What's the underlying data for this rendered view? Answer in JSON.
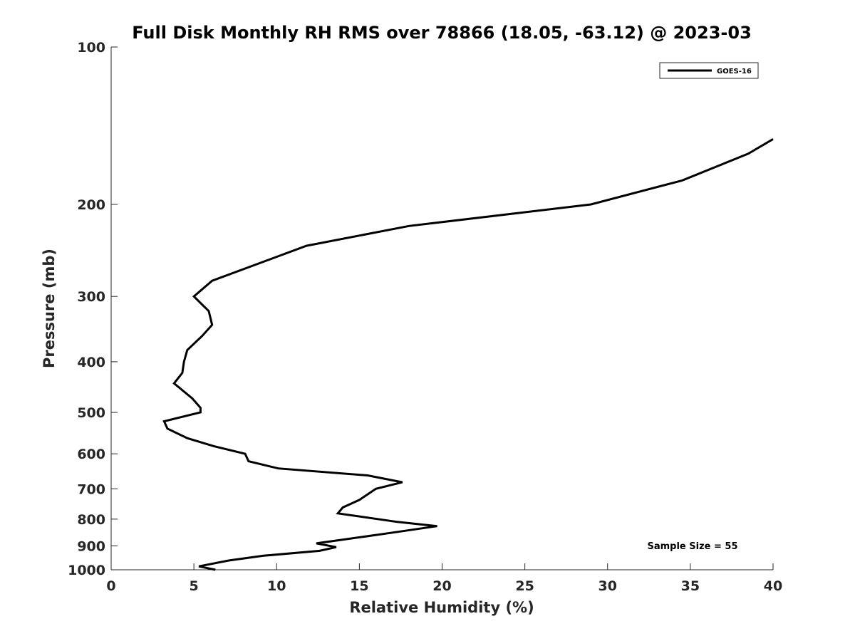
{
  "chart_data": {
    "type": "line",
    "title": "Full Disk Monthly RH RMS over 78866 (18.05, -63.12) @ 2023-03",
    "xlabel": "Relative Humidity (%)",
    "ylabel": "Pressure (mb)",
    "xlim": [
      0,
      40
    ],
    "ylim": [
      100,
      1000
    ],
    "y_scale": "log",
    "y_reversed": true,
    "grid": false,
    "legend_position": "top-right",
    "x_ticks": [
      "0",
      "5",
      "10",
      "15",
      "20",
      "25",
      "30",
      "35",
      "40"
    ],
    "y_ticks": [
      "100",
      "200",
      "300",
      "400",
      "500",
      "600",
      "700",
      "800",
      "900",
      "1000"
    ],
    "series": [
      {
        "name": "GOES-16",
        "color": "#000000",
        "points": [
          [
            40.0,
            150
          ],
          [
            38.5,
            160
          ],
          [
            34.5,
            180
          ],
          [
            29.0,
            200
          ],
          [
            18.0,
            220
          ],
          [
            11.8,
            240
          ],
          [
            6.1,
            280
          ],
          [
            5.0,
            300
          ],
          [
            5.9,
            320
          ],
          [
            6.1,
            340
          ],
          [
            5.5,
            357
          ],
          [
            4.6,
            380
          ],
          [
            4.4,
            400
          ],
          [
            4.3,
            420
          ],
          [
            3.8,
            440
          ],
          [
            4.9,
            470
          ],
          [
            5.4,
            490
          ],
          [
            5.4,
            500
          ],
          [
            3.2,
            520
          ],
          [
            3.4,
            537
          ],
          [
            4.6,
            560
          ],
          [
            6.2,
            580
          ],
          [
            8.1,
            600
          ],
          [
            8.3,
            620
          ],
          [
            10.1,
            640
          ],
          [
            15.5,
            660
          ],
          [
            17.6,
            680
          ],
          [
            16.0,
            700
          ],
          [
            15.0,
            735
          ],
          [
            14.0,
            760
          ],
          [
            13.7,
            780
          ],
          [
            17.3,
            810
          ],
          [
            19.7,
            825
          ],
          [
            16.9,
            850
          ],
          [
            14.1,
            875
          ],
          [
            12.4,
            890
          ],
          [
            13.6,
            905
          ],
          [
            12.6,
            920
          ],
          [
            9.2,
            940
          ],
          [
            7.1,
            960
          ],
          [
            5.3,
            985
          ],
          [
            6.3,
            1000
          ]
        ]
      }
    ],
    "annotations": [
      {
        "text": "Sample Size = 55",
        "position": "bottom-right"
      }
    ]
  }
}
